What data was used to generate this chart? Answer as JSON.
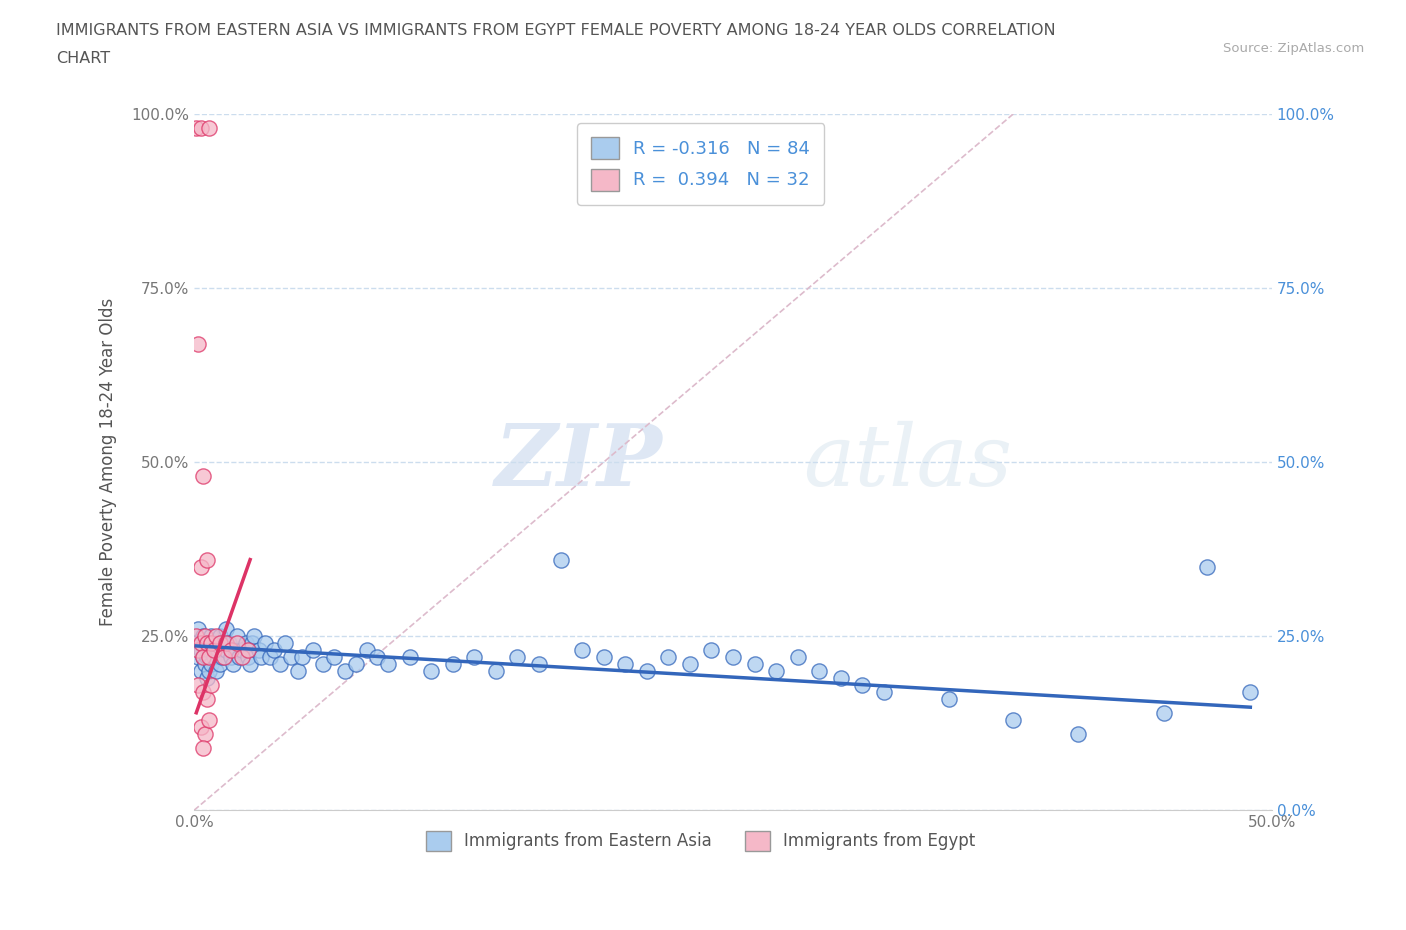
{
  "title": "IMMIGRANTS FROM EASTERN ASIA VS IMMIGRANTS FROM EGYPT FEMALE POVERTY AMONG 18-24 YEAR OLDS CORRELATION\nCHART",
  "source": "Source: ZipAtlas.com",
  "ylabel": "Female Poverty Among 18-24 Year Olds",
  "xlim": [
    0.0,
    0.5
  ],
  "ylim": [
    0.0,
    1.0
  ],
  "xticks": [
    0.0,
    0.1,
    0.2,
    0.3,
    0.4,
    0.5
  ],
  "xticklabels": [
    "0.0%",
    "",
    "",
    "",
    "",
    "50.0%"
  ],
  "yticks": [
    0.0,
    0.25,
    0.5,
    0.75,
    1.0
  ],
  "yticklabels": [
    "",
    "25.0%",
    "50.0%",
    "75.0%",
    "100.0%"
  ],
  "yticklabels_right": [
    "0.0%",
    "25.0%",
    "50.0%",
    "75.0%",
    "100.0%"
  ],
  "watermark_zip": "ZIP",
  "watermark_atlas": "atlas",
  "blue_color": "#aaccee",
  "pink_color": "#f5b8c8",
  "blue_line_color": "#3366bb",
  "pink_line_color": "#dd3366",
  "diag_color": "#ddbbcc",
  "R_blue": -0.316,
  "N_blue": 84,
  "R_pink": 0.394,
  "N_pink": 32,
  "legend_blue_label": "Immigrants from Eastern Asia",
  "legend_pink_label": "Immigrants from Egypt",
  "blue_scatter": [
    [
      0.001,
      0.24
    ],
    [
      0.002,
      0.26
    ],
    [
      0.002,
      0.22
    ],
    [
      0.003,
      0.23
    ],
    [
      0.003,
      0.2
    ],
    [
      0.004,
      0.25
    ],
    [
      0.004,
      0.22
    ],
    [
      0.005,
      0.21
    ],
    [
      0.005,
      0.24
    ],
    [
      0.006,
      0.22
    ],
    [
      0.006,
      0.19
    ],
    [
      0.007,
      0.23
    ],
    [
      0.007,
      0.2
    ],
    [
      0.008,
      0.25
    ],
    [
      0.008,
      0.21
    ],
    [
      0.009,
      0.22
    ],
    [
      0.01,
      0.24
    ],
    [
      0.01,
      0.2
    ],
    [
      0.011,
      0.23
    ],
    [
      0.012,
      0.25
    ],
    [
      0.012,
      0.21
    ],
    [
      0.013,
      0.22
    ],
    [
      0.014,
      0.24
    ],
    [
      0.015,
      0.26
    ],
    [
      0.015,
      0.23
    ],
    [
      0.016,
      0.24
    ],
    [
      0.017,
      0.22
    ],
    [
      0.018,
      0.21
    ],
    [
      0.019,
      0.23
    ],
    [
      0.02,
      0.25
    ],
    [
      0.021,
      0.22
    ],
    [
      0.022,
      0.23
    ],
    [
      0.024,
      0.24
    ],
    [
      0.025,
      0.22
    ],
    [
      0.026,
      0.21
    ],
    [
      0.027,
      0.24
    ],
    [
      0.028,
      0.25
    ],
    [
      0.03,
      0.23
    ],
    [
      0.031,
      0.22
    ],
    [
      0.033,
      0.24
    ],
    [
      0.035,
      0.22
    ],
    [
      0.037,
      0.23
    ],
    [
      0.04,
      0.21
    ],
    [
      0.042,
      0.24
    ],
    [
      0.045,
      0.22
    ],
    [
      0.048,
      0.2
    ],
    [
      0.05,
      0.22
    ],
    [
      0.055,
      0.23
    ],
    [
      0.06,
      0.21
    ],
    [
      0.065,
      0.22
    ],
    [
      0.07,
      0.2
    ],
    [
      0.075,
      0.21
    ],
    [
      0.08,
      0.23
    ],
    [
      0.085,
      0.22
    ],
    [
      0.09,
      0.21
    ],
    [
      0.1,
      0.22
    ],
    [
      0.11,
      0.2
    ],
    [
      0.12,
      0.21
    ],
    [
      0.13,
      0.22
    ],
    [
      0.14,
      0.2
    ],
    [
      0.15,
      0.22
    ],
    [
      0.16,
      0.21
    ],
    [
      0.17,
      0.36
    ],
    [
      0.18,
      0.23
    ],
    [
      0.19,
      0.22
    ],
    [
      0.2,
      0.21
    ],
    [
      0.21,
      0.2
    ],
    [
      0.22,
      0.22
    ],
    [
      0.23,
      0.21
    ],
    [
      0.24,
      0.23
    ],
    [
      0.25,
      0.22
    ],
    [
      0.26,
      0.21
    ],
    [
      0.27,
      0.2
    ],
    [
      0.28,
      0.22
    ],
    [
      0.29,
      0.2
    ],
    [
      0.3,
      0.19
    ],
    [
      0.31,
      0.18
    ],
    [
      0.32,
      0.17
    ],
    [
      0.35,
      0.16
    ],
    [
      0.38,
      0.13
    ],
    [
      0.41,
      0.11
    ],
    [
      0.45,
      0.14
    ],
    [
      0.47,
      0.35
    ],
    [
      0.49,
      0.17
    ]
  ],
  "pink_scatter": [
    [
      0.001,
      0.98
    ],
    [
      0.003,
      0.98
    ],
    [
      0.007,
      0.98
    ],
    [
      0.002,
      0.67
    ],
    [
      0.004,
      0.48
    ],
    [
      0.003,
      0.35
    ],
    [
      0.006,
      0.36
    ],
    [
      0.001,
      0.25
    ],
    [
      0.002,
      0.23
    ],
    [
      0.003,
      0.24
    ],
    [
      0.004,
      0.22
    ],
    [
      0.005,
      0.25
    ],
    [
      0.006,
      0.24
    ],
    [
      0.007,
      0.22
    ],
    [
      0.008,
      0.24
    ],
    [
      0.009,
      0.23
    ],
    [
      0.01,
      0.25
    ],
    [
      0.012,
      0.24
    ],
    [
      0.014,
      0.22
    ],
    [
      0.015,
      0.24
    ],
    [
      0.017,
      0.23
    ],
    [
      0.02,
      0.24
    ],
    [
      0.022,
      0.22
    ],
    [
      0.025,
      0.23
    ],
    [
      0.002,
      0.18
    ],
    [
      0.004,
      0.17
    ],
    [
      0.006,
      0.16
    ],
    [
      0.008,
      0.18
    ],
    [
      0.003,
      0.12
    ],
    [
      0.005,
      0.11
    ],
    [
      0.007,
      0.13
    ],
    [
      0.004,
      0.09
    ]
  ],
  "blue_trend_x": [
    0.001,
    0.49
  ],
  "blue_trend_y": [
    0.236,
    0.148
  ],
  "pink_trend_x": [
    0.001,
    0.026
  ],
  "pink_trend_y": [
    0.14,
    0.36
  ]
}
